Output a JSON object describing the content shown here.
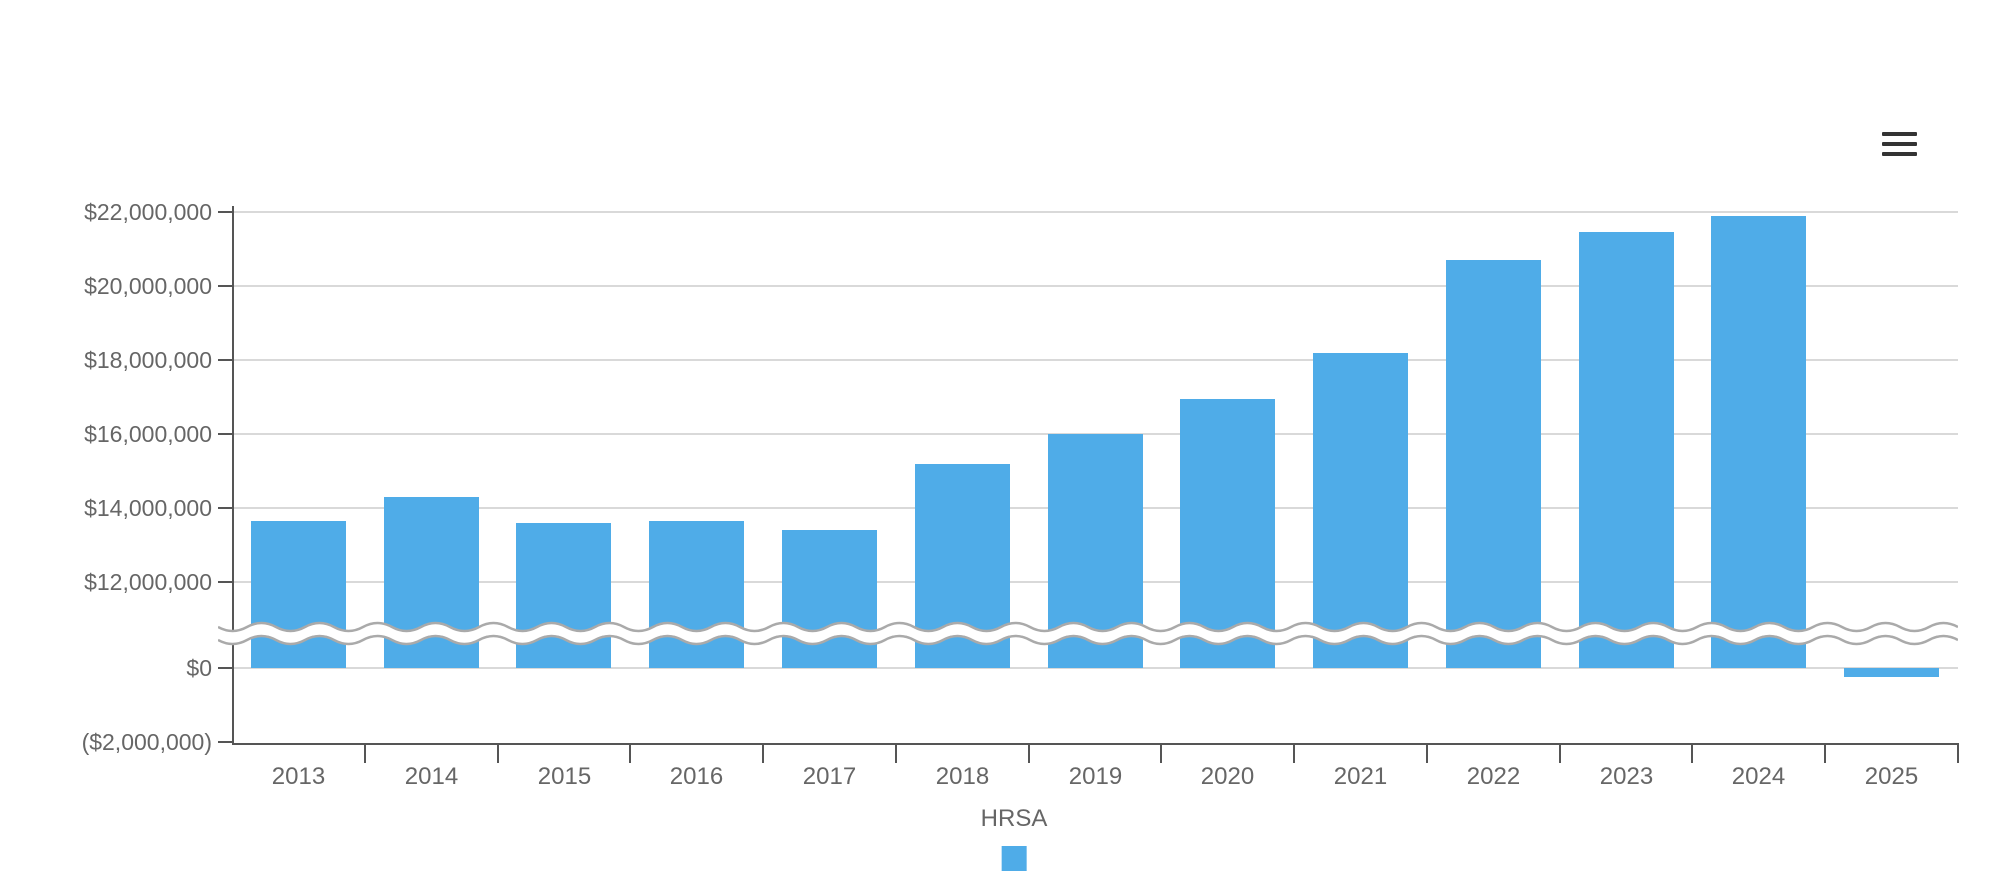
{
  "colors": {
    "bar": "#4FACE8",
    "grid": "#D9D9D9",
    "axis": "#555555",
    "label": "#666666",
    "break_line": "#AAAAAA",
    "menu_icon": "#333333",
    "background": "#FFFFFF"
  },
  "toolbar": {
    "menu_icon": "hamburger-menu-icon"
  },
  "chart_data": {
    "type": "bar",
    "title": "",
    "xlabel": "",
    "ylabel": "",
    "categories": [
      "2013",
      "2014",
      "2015",
      "2016",
      "2017",
      "2018",
      "2019",
      "2020",
      "2021",
      "2022",
      "2023",
      "2024",
      "2025"
    ],
    "series": [
      {
        "name": "HRSA",
        "color": "#4FACE8",
        "values": [
          13650000,
          14300000,
          13600000,
          13650000,
          13400000,
          15200000,
          16000000,
          16950000,
          18200000,
          20700000,
          21450000,
          21900000,
          -250000
        ]
      }
    ],
    "y_ticks": [
      {
        "label": "$22,000,000",
        "value": 22000000
      },
      {
        "label": "$20,000,000",
        "value": 20000000
      },
      {
        "label": "$18,000,000",
        "value": 18000000
      },
      {
        "label": "$16,000,000",
        "value": 16000000
      },
      {
        "label": "$14,000,000",
        "value": 14000000
      },
      {
        "label": "$12,000,000",
        "value": 12000000
      },
      {
        "label": "$0",
        "value": 0
      },
      {
        "label": "($2,000,000)",
        "value": -2000000
      }
    ],
    "axis_break": {
      "from": 0,
      "to": 12000000,
      "style": "double-wavy-line"
    },
    "grid": true,
    "legend_position": "bottom-center"
  }
}
